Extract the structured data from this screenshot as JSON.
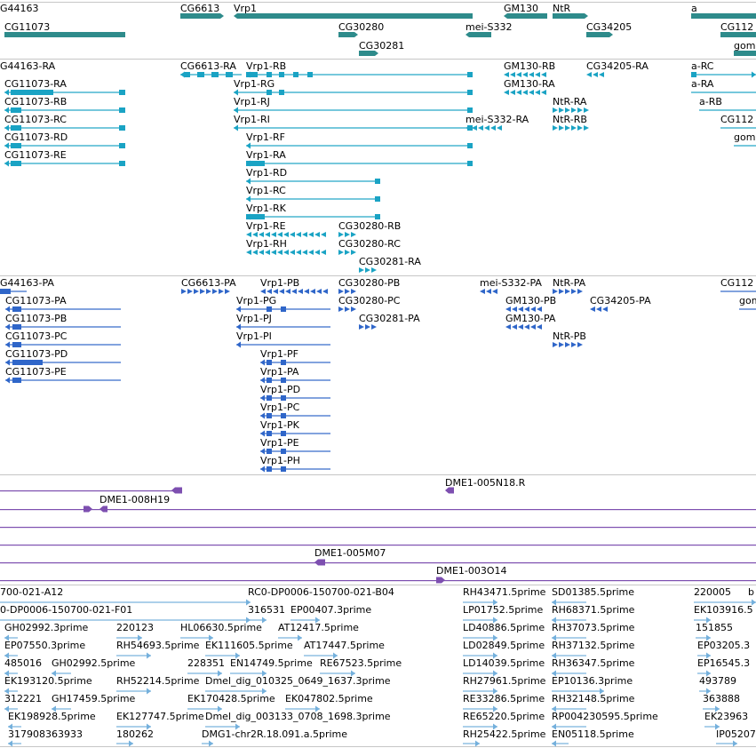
{
  "colors": {
    "gene": "#2e8b8b",
    "mrna": "#1aa3c4",
    "protein": "#2f66c9",
    "clone": "#7d4fb0",
    "est": "#74b0dc",
    "divider": "#c6c6c6"
  },
  "tracks": {
    "genes": {
      "labels": [
        {
          "text": "G44163"
        },
        {
          "text": "CG6613"
        },
        {
          "text": "Vrp1"
        },
        {
          "text": "GM130"
        },
        {
          "text": "NtR"
        },
        {
          "text": "a"
        },
        {
          "text": "CG11073"
        },
        {
          "text": "CG30280"
        },
        {
          "text": "mei-S332"
        },
        {
          "text": "CG34205"
        },
        {
          "text": "CG112"
        },
        {
          "text": "CG30281"
        },
        {
          "text": "gom"
        }
      ]
    },
    "transcripts": {
      "labels": [
        {
          "text": "G44163-RA"
        },
        {
          "text": "CG6613-RA"
        },
        {
          "text": "Vrp1-RB"
        },
        {
          "text": "GM130-RB"
        },
        {
          "text": "CG34205-RA"
        },
        {
          "text": "a-RC"
        },
        {
          "text": "CG11073-RA"
        },
        {
          "text": "Vrp1-RG"
        },
        {
          "text": "GM130-RA"
        },
        {
          "text": "a-RA"
        },
        {
          "text": "CG11073-RB"
        },
        {
          "text": "Vrp1-RJ"
        },
        {
          "text": "NtR-RA"
        },
        {
          "text": "a-RB"
        },
        {
          "text": "CG11073-RC"
        },
        {
          "text": "Vrp1-RI"
        },
        {
          "text": "mei-S332-RA"
        },
        {
          "text": "NtR-RB"
        },
        {
          "text": "CG112"
        },
        {
          "text": "CG11073-RD"
        },
        {
          "text": "Vrp1-RF"
        },
        {
          "text": "gom"
        },
        {
          "text": "CG11073-RE"
        },
        {
          "text": "Vrp1-RA"
        },
        {
          "text": "Vrp1-RD"
        },
        {
          "text": "Vrp1-RC"
        },
        {
          "text": "Vrp1-RK"
        },
        {
          "text": "Vrp1-RE"
        },
        {
          "text": "CG30280-RB"
        },
        {
          "text": "Vrp1-RH"
        },
        {
          "text": "CG30280-RC"
        },
        {
          "text": "CG30281-RA"
        }
      ]
    },
    "proteins": {
      "labels": [
        {
          "text": "G44163-PA"
        },
        {
          "text": "CG6613-PA"
        },
        {
          "text": "Vrp1-PB"
        },
        {
          "text": "CG30280-PB"
        },
        {
          "text": "mei-S332-PA"
        },
        {
          "text": "NtR-PA"
        },
        {
          "text": "CG112"
        },
        {
          "text": "CG11073-PA"
        },
        {
          "text": "Vrp1-PG"
        },
        {
          "text": "CG30280-PC"
        },
        {
          "text": "GM130-PB"
        },
        {
          "text": "CG34205-PA"
        },
        {
          "text": "gom"
        },
        {
          "text": "CG11073-PB"
        },
        {
          "text": "Vrp1-PJ"
        },
        {
          "text": "CG30281-PA"
        },
        {
          "text": "GM130-PA"
        },
        {
          "text": "CG11073-PC"
        },
        {
          "text": "Vrp1-PI"
        },
        {
          "text": "NtR-PB"
        },
        {
          "text": "CG11073-PD"
        },
        {
          "text": "Vrp1-PF"
        },
        {
          "text": "CG11073-PE"
        },
        {
          "text": "Vrp1-PA"
        },
        {
          "text": "Vrp1-PD"
        },
        {
          "text": "Vrp1-PC"
        },
        {
          "text": "Vrp1-PK"
        },
        {
          "text": "Vrp1-PE"
        },
        {
          "text": "Vrp1-PH"
        }
      ]
    },
    "clones_a": {
      "labels": [
        {
          "text": "DME1-005N18.R"
        },
        {
          "text": "DME1-008H19"
        }
      ]
    },
    "clones_b": {
      "labels": [
        {
          "text": "DME1-005M07"
        },
        {
          "text": "DME1-003O14"
        }
      ]
    },
    "ests": {
      "labels": [
        {
          "text": "700-021-A12"
        },
        {
          "text": "RC0-DP0006-150700-021-B04"
        },
        {
          "text": "RH43471.5prime"
        },
        {
          "text": "SD01385.5prime"
        },
        {
          "text": "220005"
        },
        {
          "text": "b"
        },
        {
          "text": "0-DP0006-150700-021-F01"
        },
        {
          "text": "316531"
        },
        {
          "text": "EP00407.3prime"
        },
        {
          "text": "LP01752.5prime"
        },
        {
          "text": "RH68371.5prime"
        },
        {
          "text": "EK103916.5"
        },
        {
          "text": "GH02992.3prime"
        },
        {
          "text": "220123"
        },
        {
          "text": "HL06630.5prime"
        },
        {
          "text": "AT12417.5prime"
        },
        {
          "text": "LD40886.5prime"
        },
        {
          "text": "RH37073.5prime"
        },
        {
          "text": "151855"
        },
        {
          "text": "EP07550.3prime"
        },
        {
          "text": "RH54693.5prime"
        },
        {
          "text": "EK111605.5prime"
        },
        {
          "text": "AT17447.5prime"
        },
        {
          "text": "LD02849.5prime"
        },
        {
          "text": "RH37132.5prime"
        },
        {
          "text": "EP03205.3"
        },
        {
          "text": "485016"
        },
        {
          "text": "GH02992.5prime"
        },
        {
          "text": "228351"
        },
        {
          "text": "EN14749.5prime"
        },
        {
          "text": "RE67523.5prime"
        },
        {
          "text": "LD14039.5prime"
        },
        {
          "text": "RH36347.5prime"
        },
        {
          "text": "EP16545.3"
        },
        {
          "text": "EK193120.5prime"
        },
        {
          "text": "RH52214.5prime"
        },
        {
          "text": "Dmel_dig_010325_0649_1637.3prime"
        },
        {
          "text": "RH27961.5prime"
        },
        {
          "text": "EP10136.3prime"
        },
        {
          "text": "493789"
        },
        {
          "text": "312221"
        },
        {
          "text": "GH17459.5prime"
        },
        {
          "text": "EK170428.5prime"
        },
        {
          "text": "EK047802.5prime"
        },
        {
          "text": "RE33286.5prime"
        },
        {
          "text": "RH32148.5prime"
        },
        {
          "text": "363888"
        },
        {
          "text": "EK198928.5prime"
        },
        {
          "text": "EK127747.5prime"
        },
        {
          "text": "Dmel_dig_003133_0708_1698.3prime"
        },
        {
          "text": "RE65220.5prime"
        },
        {
          "text": "RP004230595.5prime"
        },
        {
          "text": "EK23963"
        },
        {
          "text": "317908363933"
        },
        {
          "text": "180262"
        },
        {
          "text": "DMG1-chr2R.18.091.a.5prime"
        },
        {
          "text": "RH25422.5prime"
        },
        {
          "text": "EN05118.5prime"
        },
        {
          "text": "IP05207"
        }
      ]
    }
  }
}
